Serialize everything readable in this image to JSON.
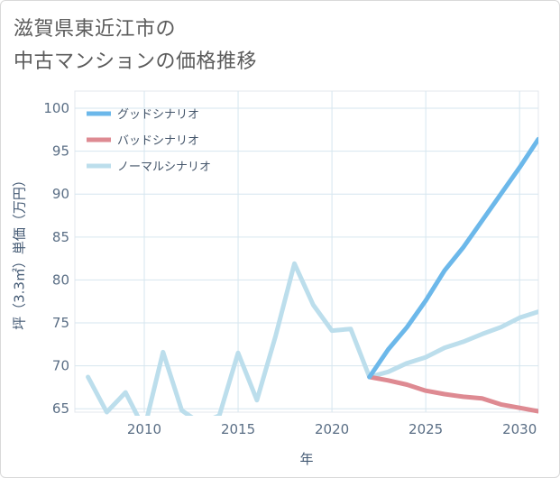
{
  "page": {
    "title_line1": "滋賀県東近江市の",
    "title_line2": "中古マンションの価格推移"
  },
  "chart_data": {
    "type": "line",
    "xlabel": "年",
    "ylabel": "坪（3.3㎡）単価（万円）",
    "xlim": [
      2006.3,
      2031
    ],
    "ylim": [
      64.6,
      102
    ],
    "x_ticks": [
      2010,
      2015,
      2020,
      2025,
      2030
    ],
    "y_ticks": [
      65,
      70,
      75,
      80,
      85,
      90,
      95,
      100
    ],
    "grid": true,
    "legend_position": "top-left",
    "series": [
      {
        "name": "グッドシナリオ",
        "color": "#6cb8ea",
        "x": [
          2022,
          2023,
          2024,
          2025,
          2026,
          2027,
          2028,
          2029,
          2030,
          2031
        ],
        "y": [
          68.7,
          71.9,
          74.5,
          77.6,
          81.1,
          83.8,
          86.9,
          90.0,
          93.1,
          96.4
        ]
      },
      {
        "name": "バッドシナリオ",
        "color": "#de8a92",
        "x": [
          2022,
          2023,
          2024,
          2025,
          2026,
          2027,
          2028,
          2029,
          2030,
          2031
        ],
        "y": [
          68.7,
          68.3,
          67.8,
          67.1,
          66.7,
          66.4,
          66.2,
          65.5,
          65.1,
          64.7
        ]
      },
      {
        "name": "ノーマルシナリオ",
        "color": "#bcdeec",
        "x": [
          2007,
          2008,
          2009,
          2010,
          2011,
          2012,
          2013,
          2014,
          2015,
          2016,
          2017,
          2018,
          2019,
          2020,
          2021,
          2022,
          2023,
          2024,
          2025,
          2026,
          2027,
          2028,
          2029,
          2030,
          2031
        ],
        "y": [
          68.7,
          64.6,
          66.9,
          62.6,
          71.6,
          64.8,
          63.3,
          64.2,
          71.5,
          66.0,
          73.5,
          81.9,
          77.1,
          74.1,
          74.3,
          68.7,
          69.3,
          70.3,
          71.0,
          72.1,
          72.8,
          73.7,
          74.5,
          75.6,
          76.3
        ]
      }
    ]
  }
}
